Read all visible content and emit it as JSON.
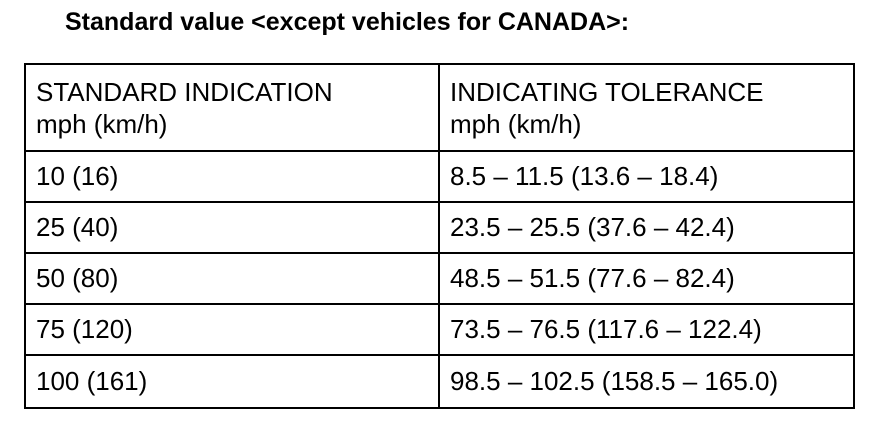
{
  "title": "Standard value <except vehicles for CANADA>:",
  "table": {
    "headers": [
      {
        "line1": "STANDARD INDICATION",
        "line2": "mph (km/h)"
      },
      {
        "line1": "INDICATING TOLERANCE",
        "line2": "mph (km/h)"
      }
    ],
    "rows": [
      [
        "10 (16)",
        "8.5 – 11.5 (13.6 – 18.4)"
      ],
      [
        "25 (40)",
        "23.5 – 25.5 (37.6 – 42.4)"
      ],
      [
        "50 (80)",
        "48.5 – 51.5 (77.6 – 82.4)"
      ],
      [
        "75 (120)",
        "73.5 – 76.5 (117.6 – 122.4)"
      ],
      [
        "100 (161)",
        "98.5 – 102.5 (158.5 – 165.0)"
      ]
    ]
  }
}
